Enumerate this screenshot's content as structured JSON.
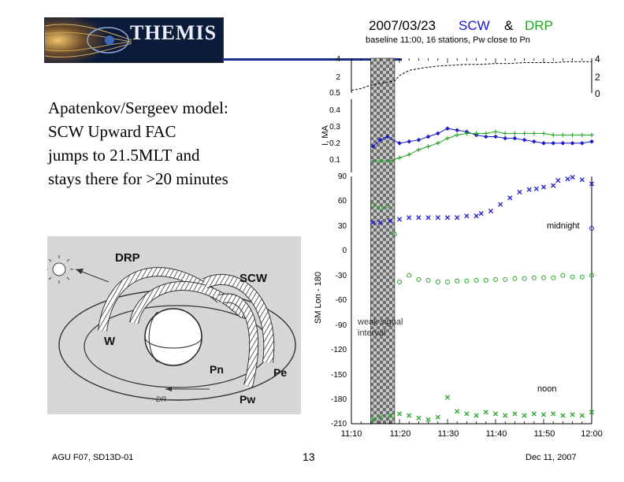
{
  "logo": {
    "text": "THEMIS"
  },
  "main_text": {
    "lines": [
      "Apatenkov/Sergeev model:",
      "SCW Upward FAC",
      "jumps to 21.5MLT and",
      "stays there for >20 minutes"
    ]
  },
  "diagram": {
    "labels": {
      "drp": "DRP",
      "scw": "SCW",
      "w": "W",
      "pn": "Pn",
      "pe": "Pe",
      "pw": "Pw",
      "dr": "DR"
    }
  },
  "footer": {
    "left": "AGU F07, SD13D-01",
    "page": "13",
    "date": "Dec 11, 2007"
  },
  "colors": {
    "scw": "#1a1acd",
    "drp": "#22a522",
    "baseline": "#000000",
    "shade": "#808080"
  },
  "chart_data": {
    "type": "scatter",
    "title": {
      "date": "2007/03/23",
      "scw": "SCW",
      "amp": "&",
      "drp": "DRP",
      "subtitle": "baseline 11:00, 16 stations, Pw close to Pn"
    },
    "x_ticks": [
      "11:10",
      "11:20",
      "11:30",
      "11:40",
      "11:50",
      "12:00"
    ],
    "x_range_min": [
      10,
      60
    ],
    "shaded_interval_min": [
      14,
      19
    ],
    "annotations": {
      "weak_signal": [
        "weak signal",
        "interval"
      ],
      "midnight": "midnight",
      "noon": "noon"
    },
    "panels": [
      {
        "name": "baseline",
        "ylim": [
          0,
          4
        ],
        "ticks_left": [
          "4",
          "2",
          "0.5"
        ],
        "ticks_right": [
          "4",
          "2",
          "0"
        ],
        "series": [
          {
            "name": "baseline",
            "color": "#000000",
            "x": [
              10,
              12,
              14,
              16,
              18,
              19,
              20,
              22,
              25,
              28,
              31,
              34,
              37,
              40,
              43,
              46,
              49,
              52,
              55,
              58,
              60
            ],
            "y": [
              0.3,
              0.5,
              0.9,
              1.1,
              1.3,
              1.4,
              2.0,
              2.6,
              2.9,
              3.1,
              3.2,
              3.3,
              3.3,
              3.4,
              3.4,
              3.5,
              3.5,
              3.5,
              3.6,
              3.6,
              3.6
            ]
          }
        ]
      },
      {
        "name": "current",
        "ylabel": "I, MA",
        "ylim": [
          0.0,
          0.45
        ],
        "ticks": [
          "0.4",
          "0.3",
          "0.2",
          "0.1"
        ],
        "series": [
          {
            "name": "SCW",
            "color": "#1a1acd",
            "x": [
              14.5,
              16,
              17.5,
              20,
              22,
              24,
              26,
              28,
              30,
              32,
              34,
              36,
              38,
              40,
              42,
              44,
              46,
              48,
              50,
              52,
              54,
              56,
              58,
              60
            ],
            "y": [
              0.16,
              0.2,
              0.22,
              0.18,
              0.19,
              0.2,
              0.22,
              0.24,
              0.27,
              0.26,
              0.25,
              0.23,
              0.22,
              0.22,
              0.21,
              0.21,
              0.2,
              0.19,
              0.18,
              0.18,
              0.18,
              0.18,
              0.18,
              0.19
            ]
          },
          {
            "name": "DRP",
            "color": "#22a522",
            "x": [
              14.5,
              16,
              18,
              20,
              22,
              24,
              26,
              28,
              30,
              32,
              34,
              36,
              38,
              40,
              42,
              44,
              46,
              48,
              50,
              52,
              54,
              56,
              58,
              60
            ],
            "y": [
              0.07,
              0.07,
              0.07,
              0.09,
              0.11,
              0.14,
              0.16,
              0.18,
              0.21,
              0.23,
              0.24,
              0.24,
              0.24,
              0.25,
              0.24,
              0.24,
              0.24,
              0.24,
              0.24,
              0.23,
              0.23,
              0.23,
              0.23,
              0.23
            ]
          }
        ]
      },
      {
        "name": "longitude",
        "ylabel": "SM Lon - 180",
        "ylim": [
          -210,
          90
        ],
        "ticks": [
          "90",
          "60",
          "30",
          "0",
          "-30",
          "-60",
          "-90",
          "-120",
          "-150",
          "-180",
          "-210"
        ],
        "series": [
          {
            "name": "SCW upward",
            "color": "#1a1acd",
            "marker": "x",
            "x": [
              14.5,
              16,
              18,
              20,
              22,
              24,
              26,
              28,
              30,
              32,
              34,
              36,
              37,
              39,
              41,
              43,
              45,
              47,
              48.5,
              50,
              52,
              53,
              55,
              56,
              58,
              60
            ],
            "y": [
              34,
              34,
              36,
              38,
              40,
              40,
              40,
              40,
              40,
              40,
              42,
              42,
              45,
              48,
              56,
              64,
              71,
              74,
              75,
              77,
              79,
              85,
              87,
              89,
              86,
              81
            ]
          },
          {
            "name": "SCW midnight",
            "color": "#1a1acd",
            "marker": "o",
            "x": [
              60
            ],
            "y": [
              27
            ]
          },
          {
            "name": "DRP downward",
            "color": "#22a522",
            "marker": "o",
            "x": [
              14.5,
              16,
              17.5,
              19,
              20,
              22,
              24,
              26,
              28,
              30,
              32,
              34,
              36,
              38,
              40,
              42,
              44,
              46,
              48,
              50,
              52,
              54,
              56,
              58,
              60
            ],
            "y": [
              55,
              52,
              54,
              20,
              -38,
              -30,
              -35,
              -36,
              -38,
              -38,
              -37,
              -37,
              -36,
              -36,
              -35,
              -35,
              -34,
              -34,
              -33,
              -33,
              -33,
              -30,
              -32,
              -32,
              -30
            ]
          },
          {
            "name": "DRP upward",
            "color": "#22a522",
            "marker": "x",
            "x": [
              14.5,
              16,
              18,
              20,
              22,
              24,
              26,
              28,
              30,
              32,
              34,
              36,
              38,
              40,
              42,
              44,
              46,
              48,
              50,
              52,
              54,
              56,
              58,
              60
            ],
            "y": [
              -205,
              -202,
              -200,
              -198,
              -200,
              -203,
              -205,
              -202,
              -178,
              -195,
              -198,
              -200,
              -196,
              -198,
              -200,
              -198,
              -200,
              -198,
              -199,
              -198,
              -200,
              -199,
              -200,
              -196
            ]
          }
        ]
      }
    ]
  }
}
